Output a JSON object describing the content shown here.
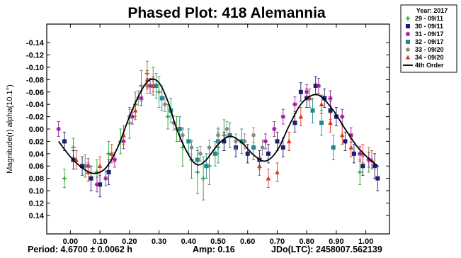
{
  "chart_data": {
    "type": "scatter",
    "title": "Phased Plot: 418 Alemannia",
    "ylabel": "Magnitude(r) alpha(10.1°)",
    "xlabel": "",
    "footer": {
      "period": "Period: 4.6700 ± 0.0062 h",
      "amp": "Amp: 0.16",
      "jdo": "JDo(LTC): 2458007.562139"
    },
    "x_ticks": [
      "0.00",
      "0.10",
      "0.20",
      "0.30",
      "0.40",
      "0.50",
      "0.60",
      "0.70",
      "0.80",
      "0.90",
      "1.00"
    ],
    "y_ticks": [
      "-0.14",
      "-0.12",
      "-0.10",
      "-0.08",
      "-0.06",
      "-0.04",
      "-0.02",
      "0.00",
      "0.02",
      "0.04",
      "0.06",
      "0.08",
      "0.10",
      "0.12",
      "0.14"
    ],
    "xlim": [
      -0.08,
      1.08
    ],
    "ylim": [
      0.17,
      -0.17
    ],
    "y_inverted": true,
    "legend": {
      "title": "Year: 2017",
      "position": "outside-right",
      "entries": [
        "29 - 09/11",
        "30 - 09/11",
        "31 - 09/17",
        "32 - 09/17",
        "33 - 09/20",
        "34 - 09/20",
        "4th Order"
      ]
    },
    "series": [
      {
        "name": "29 - 09/11",
        "marker": "plus",
        "color": "#2e9e2e",
        "points": [
          [
            0.01,
            0.03,
            0.015
          ],
          [
            0.05,
            0.06,
            0.018
          ],
          [
            0.09,
            0.07,
            0.02
          ],
          [
            0.13,
            0.04,
            0.02
          ],
          [
            0.17,
            0.02,
            0.02
          ],
          [
            0.2,
            -0.01,
            0.025
          ],
          [
            0.22,
            -0.04,
            0.02
          ],
          [
            0.24,
            -0.07,
            0.025
          ],
          [
            0.26,
            -0.09,
            0.02
          ],
          [
            0.28,
            -0.08,
            0.02
          ],
          [
            0.3,
            -0.06,
            0.025
          ],
          [
            0.33,
            -0.02,
            0.02
          ],
          [
            0.36,
            0.0,
            0.02
          ],
          [
            0.38,
            0.03,
            0.03
          ],
          [
            0.41,
            0.05,
            0.03
          ],
          [
            0.43,
            0.07,
            0.035
          ],
          [
            0.45,
            0.08,
            0.035
          ],
          [
            0.47,
            0.06,
            0.03
          ],
          [
            0.5,
            0.03,
            0.025
          ],
          [
            0.52,
            0.01,
            0.025
          ],
          [
            0.98,
            0.07,
            0.02
          ],
          [
            1.01,
            0.05,
            0.02
          ],
          [
            -0.02,
            0.08,
            0.015
          ]
        ]
      },
      {
        "name": "30 - 09/11",
        "marker": "square",
        "color": "#1a1f6e",
        "points": [
          [
            -0.02,
            0.02,
            0.015
          ],
          [
            0.01,
            0.05,
            0.015
          ],
          [
            0.04,
            0.06,
            0.015
          ],
          [
            0.07,
            0.08,
            0.02
          ],
          [
            0.1,
            0.09,
            0.02
          ],
          [
            0.13,
            0.07,
            0.02
          ],
          [
            0.52,
            0.02,
            0.015
          ],
          [
            0.56,
            0.03,
            0.015
          ],
          [
            0.6,
            0.04,
            0.015
          ],
          [
            0.64,
            0.05,
            0.015
          ],
          [
            0.67,
            0.04,
            0.015
          ],
          [
            0.7,
            0.02,
            0.015
          ],
          [
            0.72,
            0.03,
            0.015
          ],
          [
            0.76,
            -0.01,
            0.015
          ],
          [
            0.78,
            -0.06,
            0.015
          ],
          [
            0.8,
            -0.05,
            0.015
          ],
          [
            0.83,
            -0.07,
            0.015
          ],
          [
            0.86,
            -0.05,
            0.015
          ],
          [
            0.88,
            -0.03,
            0.015
          ],
          [
            0.9,
            -0.02,
            0.015
          ],
          [
            0.93,
            0.02,
            0.015
          ],
          [
            0.96,
            0.04,
            0.015
          ],
          [
            0.99,
            0.06,
            0.015
          ],
          [
            1.03,
            0.06,
            0.02
          ],
          [
            1.04,
            0.08,
            0.02
          ]
        ]
      },
      {
        "name": "31 - 09/17",
        "marker": "asterisk",
        "color": "#9a1a9a",
        "points": [
          [
            -0.04,
            0.0,
            0.012
          ],
          [
            0.06,
            0.06,
            0.012
          ],
          [
            0.09,
            0.09,
            0.012
          ],
          [
            0.12,
            0.08,
            0.012
          ],
          [
            0.15,
            0.05,
            0.012
          ],
          [
            0.18,
            0.02,
            0.012
          ],
          [
            0.21,
            -0.02,
            0.012
          ],
          [
            0.24,
            -0.05,
            0.012
          ],
          [
            0.27,
            -0.07,
            0.012
          ],
          [
            0.66,
            0.02,
            0.012
          ],
          [
            0.69,
            0.0,
            0.012
          ],
          [
            0.72,
            -0.02,
            0.012
          ],
          [
            0.76,
            -0.04,
            0.012
          ],
          [
            0.8,
            -0.06,
            0.012
          ],
          [
            0.84,
            -0.07,
            0.012
          ],
          [
            0.88,
            -0.05,
            0.012
          ],
          [
            0.92,
            -0.02,
            0.012
          ],
          [
            0.95,
            0.01,
            0.012
          ],
          [
            0.98,
            0.04,
            0.012
          ],
          [
            1.01,
            0.05,
            0.012
          ]
        ]
      },
      {
        "name": "32 - 09/17",
        "marker": "square",
        "color": "#1f8a8a",
        "points": [
          [
            0.29,
            -0.07,
            0.02
          ],
          [
            0.31,
            -0.05,
            0.02
          ],
          [
            0.34,
            -0.03,
            0.02
          ],
          [
            0.37,
            0.0,
            0.02
          ],
          [
            0.4,
            0.02,
            0.02
          ],
          [
            0.43,
            0.05,
            0.02
          ],
          [
            0.46,
            0.06,
            0.02
          ],
          [
            0.49,
            0.04,
            0.02
          ],
          [
            0.5,
            0.02,
            0.02
          ],
          [
            0.54,
            0.01,
            0.02
          ],
          [
            0.58,
            0.02,
            0.02
          ],
          [
            0.62,
            0.03,
            0.02
          ],
          [
            0.82,
            -0.03,
            0.02
          ],
          [
            0.85,
            -0.01,
            0.02
          ],
          [
            0.89,
            0.03,
            0.02
          ]
        ]
      },
      {
        "name": "33 - 09/20",
        "marker": "circle",
        "color": "#888888",
        "points": [
          [
            0.2,
            -0.02,
            0.012
          ],
          [
            0.23,
            -0.05,
            0.012
          ],
          [
            0.26,
            -0.07,
            0.012
          ],
          [
            0.32,
            -0.04,
            0.012
          ],
          [
            0.35,
            -0.01,
            0.012
          ],
          [
            0.38,
            0.01,
            0.012
          ],
          [
            0.41,
            0.03,
            0.012
          ],
          [
            0.44,
            0.04,
            0.012
          ],
          [
            0.47,
            0.03,
            0.012
          ],
          [
            0.5,
            0.01,
            0.012
          ],
          [
            0.53,
            0.0,
            0.012
          ],
          [
            0.56,
            0.02,
            0.012
          ],
          [
            0.59,
            0.02,
            0.012
          ],
          [
            0.62,
            0.01,
            0.012
          ],
          [
            0.65,
            0.03,
            0.012
          ]
        ]
      },
      {
        "name": "34 - 09/20",
        "marker": "triangle",
        "color": "#d93a1a",
        "points": [
          [
            0.02,
            0.05,
            0.015
          ],
          [
            0.06,
            0.07,
            0.015
          ],
          [
            0.1,
            0.06,
            0.015
          ],
          [
            0.14,
            0.04,
            0.015
          ],
          [
            0.18,
            0.01,
            0.015
          ],
          [
            0.22,
            -0.03,
            0.015
          ],
          [
            0.26,
            -0.08,
            0.015
          ],
          [
            0.28,
            -0.07,
            0.015
          ],
          [
            0.64,
            0.06,
            0.015
          ],
          [
            0.67,
            0.08,
            0.015
          ],
          [
            0.7,
            0.07,
            0.015
          ],
          [
            0.74,
            0.02,
            0.015
          ],
          [
            0.78,
            -0.02,
            0.015
          ],
          [
            0.81,
            -0.05,
            0.015
          ],
          [
            0.85,
            -0.04,
            0.015
          ],
          [
            0.88,
            -0.01,
            0.015
          ],
          [
            0.92,
            0.01,
            0.015
          ],
          [
            0.95,
            0.03,
            0.015
          ],
          [
            0.99,
            0.04,
            0.015
          ],
          [
            1.02,
            0.05,
            0.015
          ]
        ]
      }
    ],
    "fit_curve": {
      "name": "4th Order",
      "color": "#000000",
      "points": [
        [
          -0.04,
          0.02
        ],
        [
          0.0,
          0.045
        ],
        [
          0.04,
          0.063
        ],
        [
          0.08,
          0.072
        ],
        [
          0.12,
          0.063
        ],
        [
          0.16,
          0.03
        ],
        [
          0.2,
          -0.02
        ],
        [
          0.24,
          -0.062
        ],
        [
          0.27,
          -0.08
        ],
        [
          0.3,
          -0.075
        ],
        [
          0.33,
          -0.045
        ],
        [
          0.36,
          0.0
        ],
        [
          0.4,
          0.042
        ],
        [
          0.43,
          0.058
        ],
        [
          0.46,
          0.05
        ],
        [
          0.5,
          0.025
        ],
        [
          0.54,
          0.012
        ],
        [
          0.58,
          0.022
        ],
        [
          0.62,
          0.042
        ],
        [
          0.66,
          0.052
        ],
        [
          0.7,
          0.035
        ],
        [
          0.74,
          -0.005
        ],
        [
          0.78,
          -0.04
        ],
        [
          0.82,
          -0.055
        ],
        [
          0.85,
          -0.052
        ],
        [
          0.89,
          -0.03
        ],
        [
          0.93,
          0.0
        ],
        [
          0.97,
          0.028
        ],
        [
          1.01,
          0.048
        ],
        [
          1.04,
          0.06
        ]
      ]
    }
  }
}
